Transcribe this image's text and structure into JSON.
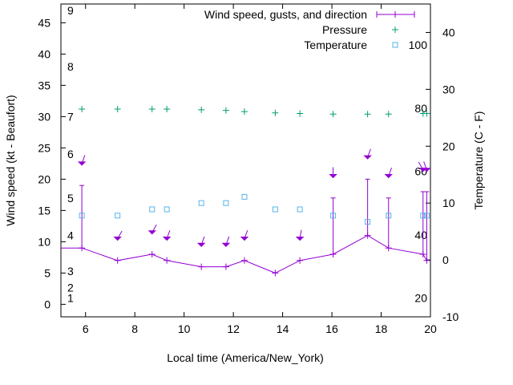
{
  "chart_data": {
    "type": "line",
    "title": "",
    "xlabel": "Local time (America/New_York)",
    "ylabel_left": "Wind speed (kt - Beaufort)",
    "ylabel_right": "Temperature (C - F)",
    "xlim": [
      5,
      20
    ],
    "ylim_left": [
      -2,
      48
    ],
    "ylim_right": [
      -10,
      45
    ],
    "x_ticks": [
      "6",
      "8",
      "10",
      "12",
      "14",
      "16",
      "18",
      "20"
    ],
    "y_left_ticks": [
      "0",
      "5",
      "10",
      "15",
      "20",
      "25",
      "30",
      "35",
      "40",
      "45"
    ],
    "y_right_ticks": [
      "-10",
      "0",
      "10",
      "20",
      "30",
      "40"
    ],
    "beaufort_labels": [
      "1",
      "2",
      "3",
      "4",
      "5",
      "6",
      "7",
      "8",
      "9"
    ],
    "beaufort_label_values": [
      1,
      2.7,
      5.3,
      11,
      17,
      24,
      30,
      38,
      47
    ],
    "fahrenheit_labels": [
      "20",
      "40",
      "60",
      "80",
      "100"
    ],
    "fahrenheit_label_values": [
      -6.7,
      4.4,
      15.6,
      26.7,
      37.8
    ],
    "legend_position": "top-right",
    "colors": {
      "wind": "#9400d3",
      "pressure": "#009e73",
      "temperature": "#56b4e9"
    },
    "series": [
      {
        "name": "Wind speed, gusts, and direction",
        "x": [
          5.85,
          7.3,
          8.7,
          9.3,
          10.7,
          11.7,
          12.45,
          13.7,
          14.7,
          16.05,
          17.45,
          18.3,
          19.7,
          19.85
        ],
        "values": [
          9,
          7,
          8,
          7,
          6,
          6,
          7,
          5,
          7,
          8,
          11,
          9,
          8,
          7
        ],
        "gusts": [
          19,
          null,
          null,
          null,
          null,
          null,
          null,
          null,
          null,
          17,
          20,
          17,
          18,
          18
        ]
      },
      {
        "name": "Pressure",
        "x": [
          5.85,
          7.3,
          8.7,
          9.3,
          10.7,
          11.7,
          12.45,
          13.7,
          14.7,
          16.05,
          17.45,
          18.3,
          19.7,
          19.85
        ],
        "values": [
          31.2,
          31.2,
          31.2,
          31.2,
          31.1,
          31.0,
          30.8,
          30.6,
          30.5,
          30.4,
          30.4,
          30.4,
          30.5,
          30.5
        ]
      },
      {
        "name": "Temperature",
        "x": [
          5.85,
          7.3,
          8.7,
          9.3,
          10.7,
          11.7,
          12.45,
          13.7,
          14.7,
          16.05,
          17.45,
          18.3,
          19.7,
          19.85
        ],
        "values": [
          7.8,
          7.8,
          8.9,
          8.9,
          10.0,
          10.0,
          11.1,
          8.9,
          8.9,
          7.8,
          6.7,
          7.8,
          7.8,
          7.8
        ]
      }
    ],
    "direction_arrows": {
      "x": [
        5.85,
        7.3,
        8.7,
        9.3,
        10.7,
        11.7,
        12.45,
        14.7,
        16.05,
        17.45,
        18.3,
        19.7,
        19.85
      ],
      "y": [
        22.5,
        10.5,
        11.5,
        10.5,
        9.5,
        9.5,
        10.5,
        10.5,
        20.5,
        23.5,
        20.5,
        21.5,
        21.5
      ],
      "direction_deg": [
        20,
        30,
        30,
        20,
        20,
        20,
        20,
        10,
        0,
        20,
        20,
        330,
        340
      ]
    }
  }
}
